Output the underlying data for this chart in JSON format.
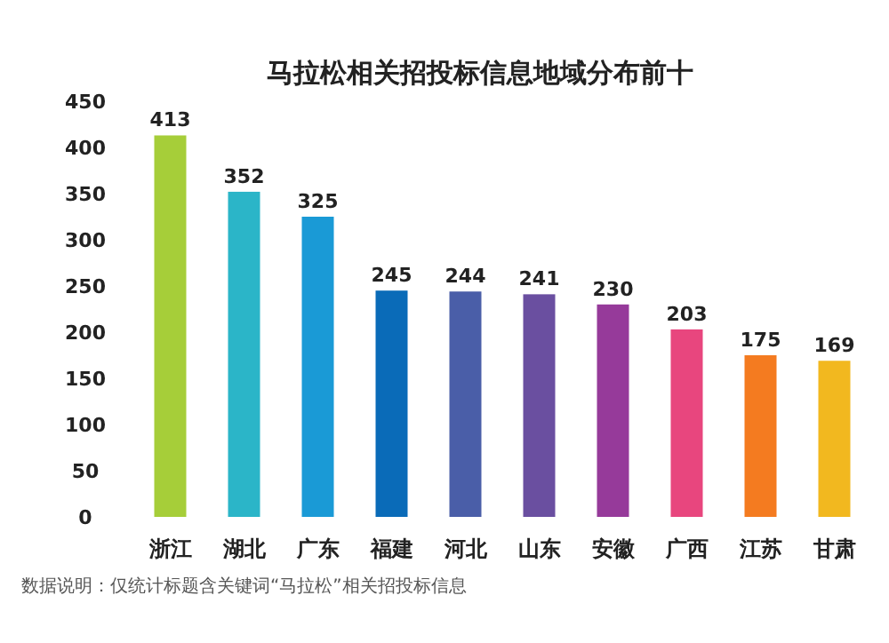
{
  "chart_data": {
    "type": "bar",
    "title": "马拉松相关招投标信息地域分布前十",
    "categories": [
      "浙江",
      "湖北",
      "广东",
      "福建",
      "河北",
      "山东",
      "安徽",
      "广西",
      "江苏",
      "甘肃"
    ],
    "values": [
      413,
      352,
      325,
      245,
      244,
      241,
      230,
      203,
      175,
      169
    ],
    "colors": [
      "#a6ce39",
      "#2bb5c8",
      "#1a9ad6",
      "#0a6bb8",
      "#4a5ea8",
      "#6a4fa0",
      "#963a9a",
      "#e8467e",
      "#f47b20",
      "#f2b81f"
    ],
    "ylim": [
      0,
      450
    ],
    "yticks": [
      0,
      50,
      100,
      150,
      200,
      250,
      300,
      350,
      400,
      450
    ],
    "data_labels": true,
    "grid": false,
    "annotations": [
      "数据说明：仅统计标题含关键词“马拉松”相关招投标信息"
    ]
  }
}
